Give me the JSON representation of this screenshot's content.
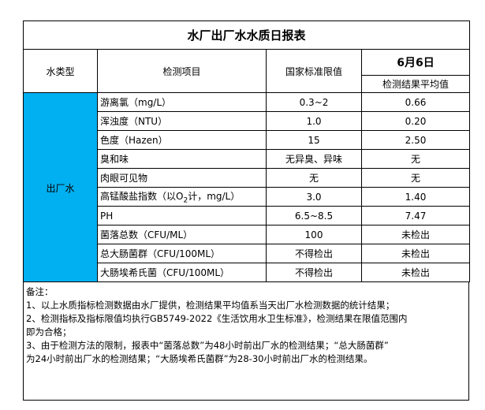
{
  "title": "水厂出厂水水质日报表",
  "headers": {
    "water_type": "水类型",
    "item": "检测项目",
    "standard": "国家标准限值",
    "date": "6月6日",
    "result": "检测结果平均值"
  },
  "water_type_value": "出厂水",
  "type_cell_color": "#00B0F0",
  "rows": [
    {
      "item": "游离氯（mg/L）",
      "standard": "0.3~2",
      "result": "0.66"
    },
    {
      "item": "浑浊度（NTU）",
      "standard": "1.0",
      "result": "0.20"
    },
    {
      "item": "色度（Hazen）",
      "standard": "15",
      "result": "2.50"
    },
    {
      "item": "臭和味",
      "standard": "无异臭、异味",
      "result": "无"
    },
    {
      "item": "肉眼可见物",
      "standard": "无",
      "result": "无"
    },
    {
      "item": "高锰酸盐指数（以O",
      "item_sub": "2",
      "item_suffix": "计，mg/L）",
      "standard": "3.0",
      "result": "1.40"
    },
    {
      "item": "PH",
      "standard": "6.5~8.5",
      "result": "7.47"
    },
    {
      "item": "菌落总数（CFU/ML）",
      "standard": "100",
      "result": "未检出"
    },
    {
      "item": "总大肠菌群（CFU/100ML）",
      "standard": "不得检出",
      "result": "未检出"
    },
    {
      "item": "大肠埃希氏菌（CFU/100ML）",
      "standard": "不得检出",
      "result": "未检出"
    }
  ],
  "notes": {
    "heading": "备注：",
    "lines": [
      "1、以上水质指标检测数据由水厂提供，检测结果平均值系当天出厂水检测数据的统计结果；",
      "2、检测指标及指标限值均执行GB5749-2022《生活饮用水卫生标准》，检测结果在限值范围内",
      "即为合格；",
      "3、由于检测方法的限制，报表中“菌落总数”为48小时前出厂水的检测结果；“总大肠菌群”",
      "为24小时前出厂水的检测结果；“大肠埃希氏菌群”为28-30小时前出厂水的检测结果。"
    ]
  }
}
